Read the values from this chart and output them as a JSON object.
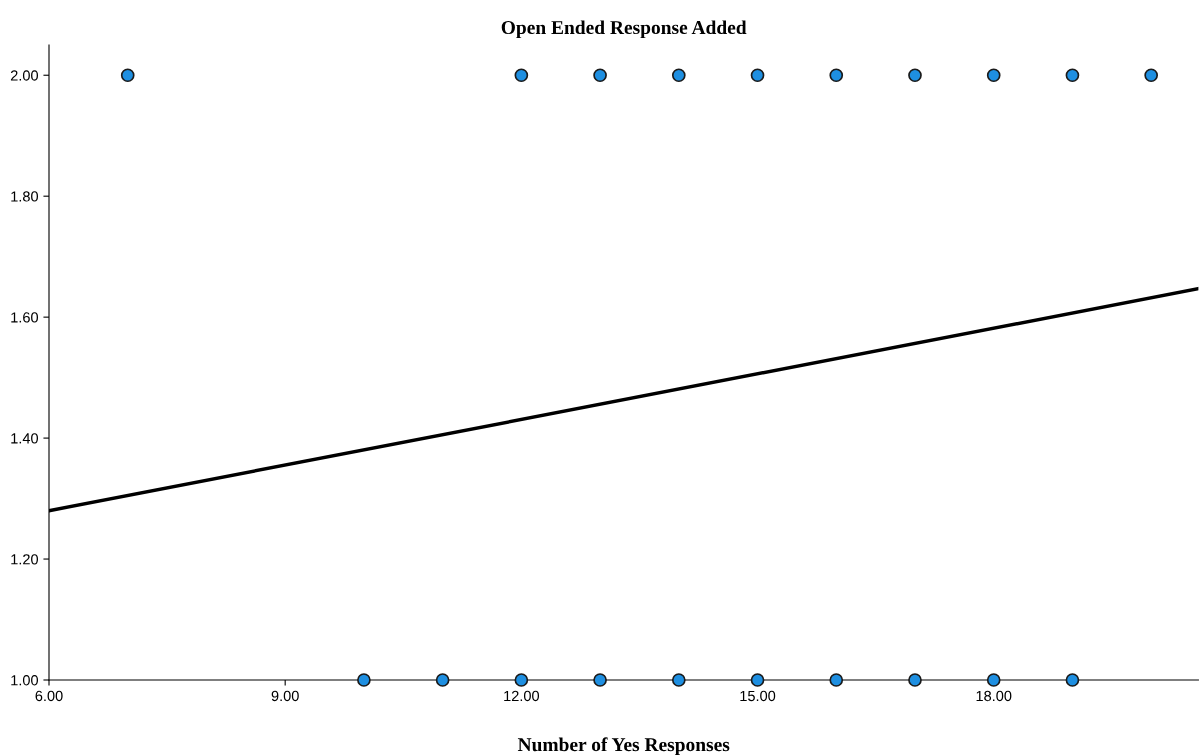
{
  "chart_data": {
    "type": "scatter",
    "title": "Open Ended Response Added",
    "xlabel": "Number of Yes Responses",
    "series": [
      {
        "color": "#1e8fe1",
        "marker": "circle",
        "x": [
          7,
          12,
          13,
          14,
          15,
          16,
          17,
          18,
          19,
          20,
          10,
          11,
          12,
          13,
          14,
          15,
          16,
          17,
          18,
          19
        ],
        "values": [
          2,
          2,
          2,
          2,
          2,
          2,
          2,
          2,
          2,
          2,
          1,
          1,
          1,
          1,
          1,
          1,
          1,
          1,
          1,
          1
        ]
      },
      {
        "type": "line",
        "marker": "none",
        "color": "#000000",
        "x": [
          6,
          20.6
        ],
        "values": [
          1.28,
          1.647
        ]
      }
    ],
    "xlim": [
      6,
      20.6
    ],
    "ylim": [
      1,
      2.05
    ],
    "xticks": [
      {
        "value": 6,
        "label": "6.00"
      },
      {
        "value": 9,
        "label": "9.00"
      },
      {
        "value": 12,
        "label": "12.00"
      },
      {
        "value": 15,
        "label": "15.00"
      },
      {
        "value": 18,
        "label": "18.00"
      }
    ],
    "yticks": [
      {
        "value": 1,
        "label": "1.00"
      },
      {
        "value": 1.2,
        "label": "1.20"
      },
      {
        "value": 1.4,
        "label": "1.40"
      },
      {
        "value": 1.6,
        "label": "1.60"
      },
      {
        "value": 1.8,
        "label": "1.80"
      },
      {
        "value": 2,
        "label": "2.00"
      }
    ],
    "grid": false
  }
}
